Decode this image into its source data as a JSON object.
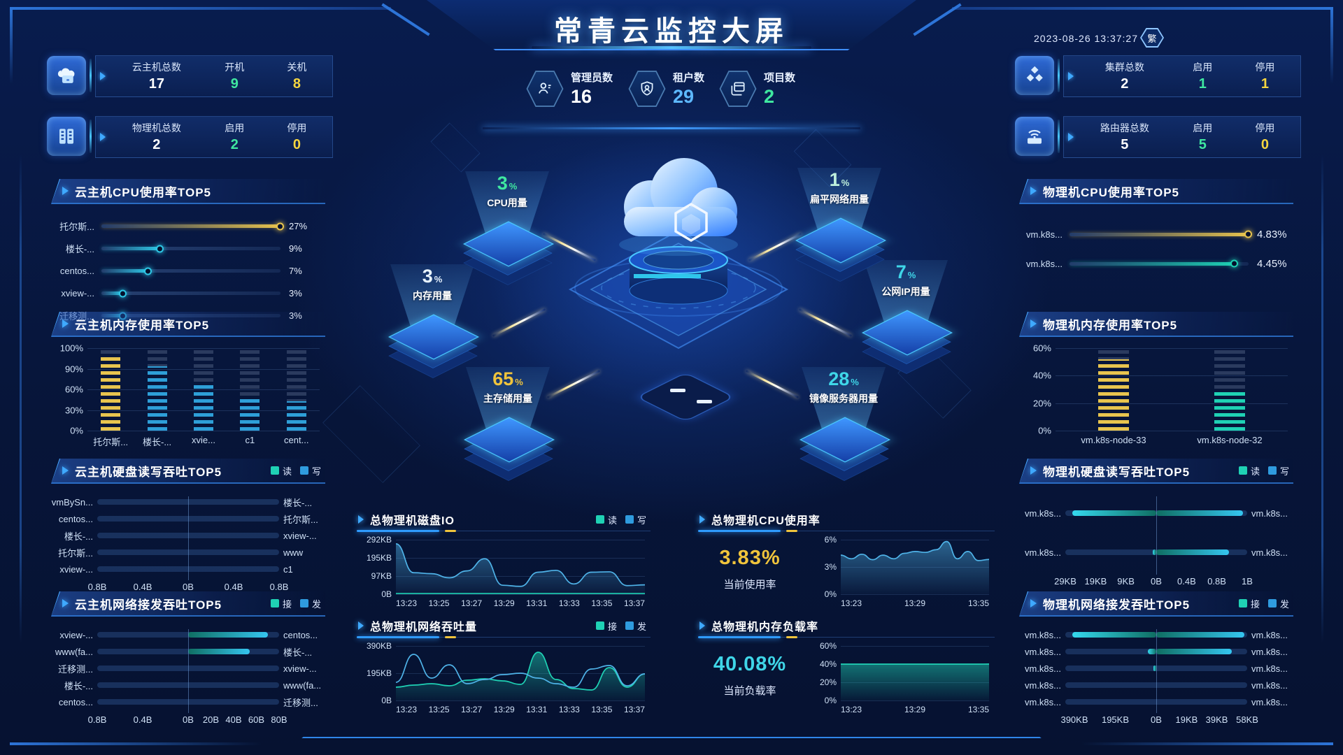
{
  "header": {
    "title": "常青云监控大屏",
    "datetime": "2023-08-26 13:37:27",
    "lang_toggle": "繁"
  },
  "stat_cards": {
    "left": [
      {
        "icon": "cloud-host-icon",
        "cols": [
          {
            "label": "云主机总数",
            "value": "17",
            "color": "#ffffff"
          },
          {
            "label": "开机",
            "value": "9",
            "color": "#3fe8a0"
          },
          {
            "label": "关机",
            "value": "8",
            "color": "#f5d53f"
          }
        ]
      },
      {
        "icon": "physical-server-icon",
        "cols": [
          {
            "label": "物理机总数",
            "value": "2",
            "color": "#ffffff"
          },
          {
            "label": "启用",
            "value": "2",
            "color": "#3fe8a0"
          },
          {
            "label": "停用",
            "value": "0",
            "color": "#f5d53f"
          }
        ]
      }
    ],
    "right": [
      {
        "icon": "cluster-icon",
        "cols": [
          {
            "label": "集群总数",
            "value": "2",
            "color": "#ffffff"
          },
          {
            "label": "启用",
            "value": "1",
            "color": "#3fe8a0"
          },
          {
            "label": "停用",
            "value": "1",
            "color": "#f5d53f"
          }
        ]
      },
      {
        "icon": "router-icon",
        "cols": [
          {
            "label": "路由器总数",
            "value": "5",
            "color": "#ffffff"
          },
          {
            "label": "启用",
            "value": "5",
            "color": "#3fe8a0"
          },
          {
            "label": "停用",
            "value": "0",
            "color": "#f5d53f"
          }
        ]
      }
    ]
  },
  "center_stats": [
    {
      "icon": "admin-icon",
      "label": "管理员数",
      "value": "16",
      "color": "#ffffff"
    },
    {
      "icon": "tenant-icon",
      "label": "租户数",
      "value": "29",
      "color": "#5db8ff"
    },
    {
      "icon": "project-icon",
      "label": "项目数",
      "value": "2",
      "color": "#3fe8a0"
    }
  ],
  "topology": {
    "nodes": [
      {
        "label": "CPU用量",
        "value": "3",
        "unit": "%",
        "color": "#3fe8a0"
      },
      {
        "label": "扁平网络用量",
        "value": "1",
        "unit": "%",
        "color": "#bff0dc"
      },
      {
        "label": "内存用量",
        "value": "3",
        "unit": "%",
        "color": "#e8f4ff"
      },
      {
        "label": "公网IP用量",
        "value": "7",
        "unit": "%",
        "color": "#3fd6e8"
      },
      {
        "label": "主存储用量",
        "value": "65",
        "unit": "%",
        "color": "#f0c43c"
      },
      {
        "label": "镜像服务器用量",
        "value": "28",
        "unit": "%",
        "color": "#3fd6e8"
      }
    ]
  },
  "chart_data": [
    {
      "id": "vm_cpu_top5",
      "type": "slider",
      "title": "云主机CPU使用率TOP5",
      "rows": [
        {
          "label": "托尔斯...",
          "value": "27%",
          "pct": 100,
          "color": "#e8c44e"
        },
        {
          "label": "楼长-...",
          "value": "9%",
          "pct": 33,
          "color": "#2ec7e6"
        },
        {
          "label": "centos...",
          "value": "7%",
          "pct": 26,
          "color": "#2ec7e6"
        },
        {
          "label": "xview-...",
          "value": "3%",
          "pct": 12,
          "color": "#2ec7e6"
        },
        {
          "label": "迁移测...",
          "value": "3%",
          "pct": 12,
          "color": "#2ec7e6"
        }
      ]
    },
    {
      "id": "vm_mem_top5",
      "type": "dashbar",
      "title": "云主机内存使用率TOP5",
      "y_ticks": [
        "100%",
        "90%",
        "60%",
        "30%",
        "0%"
      ],
      "ymax": 100,
      "categories": [
        "托尔斯...",
        "楼长-...",
        "xvie...",
        "c1",
        "cent..."
      ],
      "values": [
        90,
        78,
        55,
        38,
        36
      ],
      "colors": [
        "#e8c44e",
        "#2e9fd8",
        "#2e9fd8",
        "#2e9fd8",
        "#2e9fd8"
      ]
    },
    {
      "id": "vm_disk_top5",
      "type": "bidir",
      "title": "云主机硬盘读写吞吐TOP5",
      "legend": [
        {
          "label": "读",
          "color": "#1fd1b4"
        },
        {
          "label": "写",
          "color": "#2f9bde"
        }
      ],
      "rows": [
        {
          "left_label": "vmBySn...",
          "right_label": "楼长-...",
          "left_pct": 0,
          "right_pct": 0
        },
        {
          "left_label": "centos...",
          "right_label": "托尔斯...",
          "left_pct": 0,
          "right_pct": 0
        },
        {
          "left_label": "楼长-...",
          "right_label": "xview-...",
          "left_pct": 0,
          "right_pct": 0
        },
        {
          "left_label": "托尔斯...",
          "right_label": "www",
          "left_pct": 0,
          "right_pct": 0
        },
        {
          "left_label": "xview-...",
          "right_label": "c1",
          "left_pct": 0,
          "right_pct": 0
        }
      ],
      "axis": [
        "0.8B",
        "0.4B",
        "0B",
        "0.4B",
        "0.8B"
      ],
      "axis_pos": [
        0,
        25,
        50,
        75,
        100
      ]
    },
    {
      "id": "vm_net_top5",
      "type": "bidir",
      "title": "云主机网络接发吞吐TOP5",
      "legend": [
        {
          "label": "接",
          "color": "#1fd1b4"
        },
        {
          "label": "发",
          "color": "#2f9bde"
        }
      ],
      "rows": [
        {
          "left_label": "xview-...",
          "right_label": "centos...",
          "left_pct": 0,
          "right_pct": 88
        },
        {
          "left_label": "www(fa...",
          "right_label": "楼长-...",
          "left_pct": 0,
          "right_pct": 68
        },
        {
          "left_label": "迁移测...",
          "right_label": "xview-...",
          "left_pct": 0,
          "right_pct": 0
        },
        {
          "left_label": "楼长-...",
          "right_label": "www(fa...",
          "left_pct": 0,
          "right_pct": 0
        },
        {
          "left_label": "centos...",
          "right_label": "迁移测...",
          "left_pct": 0,
          "right_pct": 0
        }
      ],
      "axis": [
        "0.8B",
        "0.4B",
        "0B",
        "20B",
        "40B",
        "60B",
        "80B"
      ],
      "axis_pos": [
        0,
        25,
        50,
        62.5,
        75,
        87.5,
        100
      ]
    },
    {
      "id": "phy_cpu_top5",
      "type": "slider",
      "title": "物理机CPU使用率TOP5",
      "rows": [
        {
          "label": "vm.k8s...",
          "value": "4.83%",
          "pct": 100,
          "color": "#e8c44e"
        },
        {
          "label": "vm.k8s...",
          "value": "4.45%",
          "pct": 92,
          "color": "#1fd1b4"
        }
      ]
    },
    {
      "id": "phy_mem_top5",
      "type": "dashbar",
      "title": "物理机内存使用率TOP5",
      "y_ticks": [
        "60%",
        "40%",
        "20%",
        "0%"
      ],
      "ymax": 60,
      "categories": [
        "vm.k8s-node-33",
        "vm.k8s-node-32"
      ],
      "values": [
        52,
        28
      ],
      "colors": [
        "#e8c44e",
        "#1fd1b4"
      ]
    },
    {
      "id": "phy_disk_top5",
      "type": "bidir",
      "title": "物理机硬盘读写吞吐TOP5",
      "legend": [
        {
          "label": "读",
          "color": "#1fd1b4"
        },
        {
          "label": "写",
          "color": "#2f9bde"
        }
      ],
      "rows": [
        {
          "left_label": "vm.k8s...",
          "right_label": "vm.k8s...",
          "left_pct": 92,
          "right_pct": 95
        },
        {
          "left_label": "vm.k8s...",
          "right_label": "vm.k8s...",
          "left_pct": 4,
          "right_pct": 80
        }
      ],
      "axis": [
        "29KB",
        "19KB",
        "9KB",
        "0B",
        "0.4B",
        "0.8B",
        "1B"
      ],
      "axis_pos": [
        0,
        16.7,
        33.3,
        50,
        66.7,
        83.3,
        100
      ]
    },
    {
      "id": "phy_net_top5",
      "type": "bidir",
      "title": "物理机网络接发吞吐TOP5",
      "legend": [
        {
          "label": "接",
          "color": "#1fd1b4"
        },
        {
          "label": "发",
          "color": "#2f9bde"
        }
      ],
      "rows": [
        {
          "left_label": "vm.k8s...",
          "right_label": "vm.k8s...",
          "left_pct": 92,
          "right_pct": 97
        },
        {
          "left_label": "vm.k8s...",
          "right_label": "vm.k8s...",
          "left_pct": 9,
          "right_pct": 83
        },
        {
          "left_label": "vm.k8s...",
          "right_label": "vm.k8s...",
          "left_pct": 3,
          "right_pct": 0
        },
        {
          "left_label": "vm.k8s...",
          "right_label": "vm.k8s...",
          "left_pct": 0,
          "right_pct": 0
        },
        {
          "left_label": "vm.k8s...",
          "right_label": "vm.k8s...",
          "left_pct": 0,
          "right_pct": 0
        }
      ],
      "axis": [
        "390KB",
        "195KB",
        "0B",
        "19KB",
        "39KB",
        "58KB"
      ],
      "axis_pos": [
        5,
        27.5,
        50,
        66.7,
        83.3,
        100
      ]
    },
    {
      "id": "total_disk_io",
      "type": "line",
      "title": "总物理机磁盘IO",
      "legend": [
        {
          "label": "读",
          "color": "#1fd1b4"
        },
        {
          "label": "写",
          "color": "#2f9bde"
        }
      ],
      "y_ticks": [
        "292KB",
        "195KB",
        "97KB",
        "0B"
      ],
      "ymax": 292,
      "x_ticks": [
        "13:23",
        "13:25",
        "13:27",
        "13:29",
        "13:31",
        "13:33",
        "13:35",
        "13:37"
      ],
      "series": [
        {
          "name": "写",
          "color": "#4fb3e8",
          "fill": true,
          "values": [
            270,
            115,
            110,
            88,
            125,
            190,
            48,
            42,
            118,
            128,
            55,
            118,
            120,
            46,
            50
          ]
        },
        {
          "name": "读",
          "color": "#1fd1b4",
          "fill": false,
          "values": [
            4,
            4,
            4,
            4,
            4,
            4,
            4,
            4,
            4,
            4,
            4,
            4,
            4,
            4,
            4
          ]
        }
      ]
    },
    {
      "id": "total_cpu_usage",
      "type": "line",
      "title": "总物理机CPU使用率",
      "big_value": "3.83%",
      "big_label": "当前使用率",
      "big_color": "#f0c43c",
      "y_ticks": [
        "6%",
        "3%",
        "0%"
      ],
      "ymax": 6,
      "x_ticks": [
        "13:23",
        "13:29",
        "13:35"
      ],
      "series": [
        {
          "name": "CPU",
          "color": "#4fb3e8",
          "fill": true,
          "values": [
            4.3,
            3.9,
            4.4,
            3.8,
            4.3,
            3.9,
            4.5,
            4.7,
            4.6,
            4.9,
            5.8,
            3.9,
            4.7,
            3.7,
            3.83
          ]
        }
      ]
    },
    {
      "id": "total_net_throughput",
      "type": "line",
      "title": "总物理机网络吞吐量",
      "legend": [
        {
          "label": "接",
          "color": "#1fd1b4"
        },
        {
          "label": "发",
          "color": "#2f9bde"
        }
      ],
      "y_ticks": [
        "390KB",
        "195KB",
        "0B"
      ],
      "ymax": 390,
      "x_ticks": [
        "13:23",
        "13:25",
        "13:27",
        "13:29",
        "13:31",
        "13:33",
        "13:35",
        "13:37"
      ],
      "series": [
        {
          "name": "接",
          "color": "#1fd1b4",
          "fill": true,
          "values": [
            95,
            110,
            120,
            105,
            145,
            155,
            140,
            115,
            345,
            150,
            85,
            75,
            235,
            95,
            190
          ]
        },
        {
          "name": "发",
          "color": "#4fb3e8",
          "fill": false,
          "values": [
            130,
            330,
            160,
            255,
            120,
            150,
            185,
            195,
            160,
            120,
            95,
            225,
            250,
            105,
            190
          ]
        }
      ]
    },
    {
      "id": "total_mem_load",
      "type": "line",
      "title": "总物理机内存负载率",
      "big_value": "40.08%",
      "big_label": "当前负载率",
      "big_color": "#3fd6e8",
      "y_ticks": [
        "60%",
        "40%",
        "20%",
        "0%"
      ],
      "ymax": 60,
      "x_ticks": [
        "13:23",
        "13:29",
        "13:35"
      ],
      "series": [
        {
          "name": "负载",
          "color": "#1fd1b4",
          "fill": true,
          "values": [
            40,
            40,
            40,
            40,
            40,
            40,
            40,
            40,
            40,
            40,
            40,
            40,
            40,
            40,
            40.08
          ]
        }
      ]
    }
  ]
}
